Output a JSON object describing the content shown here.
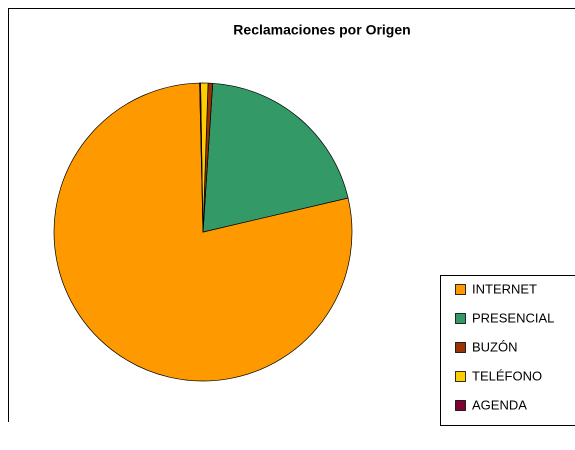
{
  "chart_data": {
    "type": "pie",
    "title": "Reclamaciones por Origen",
    "categories": [
      "INTERNET",
      "PRESENCIAL",
      "BUZÓN",
      "TELÉFONO",
      "AGENDA"
    ],
    "values": [
      78.3,
      20.3,
      0.5,
      0.8,
      0.1
    ],
    "colors": [
      "#ff9900",
      "#339966",
      "#993300",
      "#ffcc00",
      "#800033"
    ],
    "legend": "right"
  }
}
